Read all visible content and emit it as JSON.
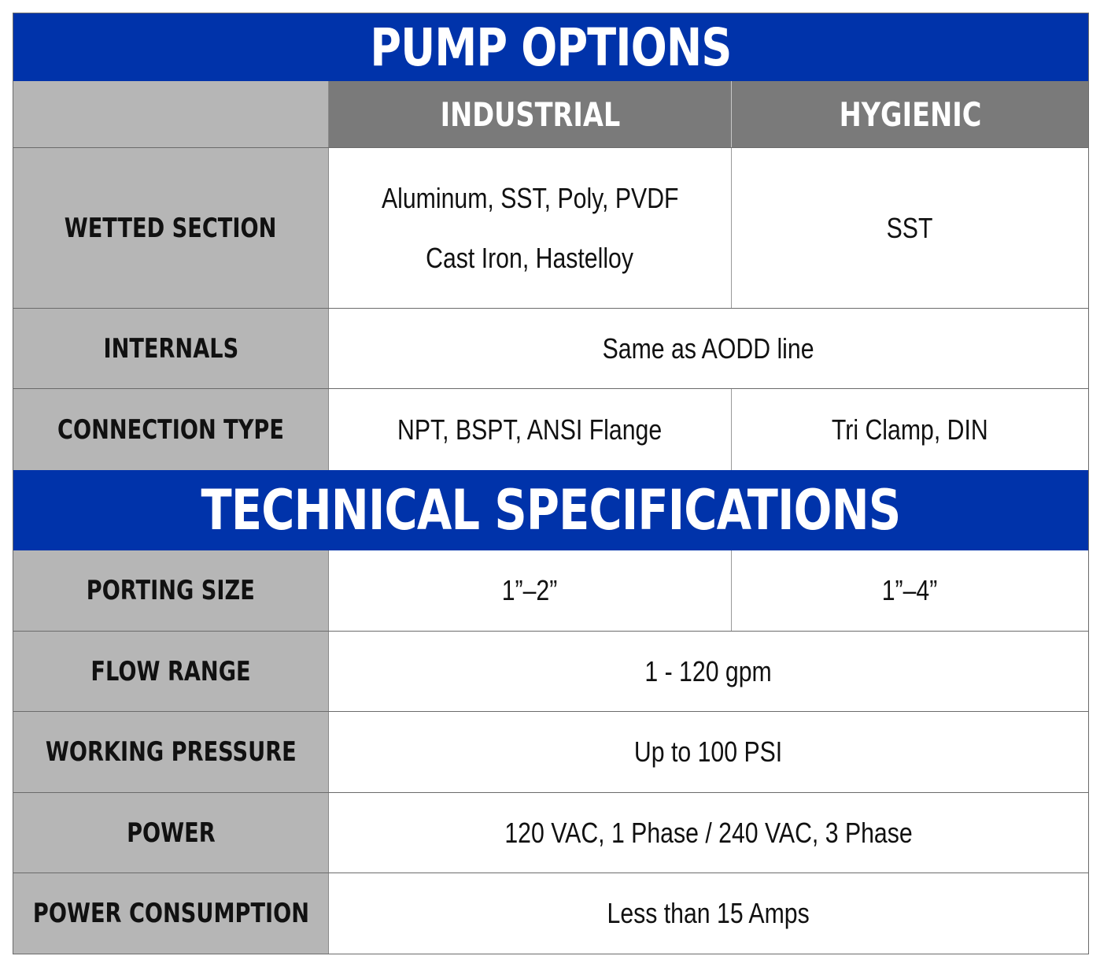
{
  "pump_options": {
    "title": "PUMP OPTIONS",
    "columns": [
      "INDUSTRIAL",
      "HYGIENIC"
    ],
    "rows": [
      {
        "label": "WETTED SECTION",
        "industrial": [
          "Aluminum, SST, Poly, PVDF",
          "Cast Iron, Hastelloy"
        ],
        "hygienic": "SST"
      },
      {
        "label": "INTERNALS",
        "both": "Same as AODD line"
      },
      {
        "label": "CONNECTION TYPE",
        "industrial": "NPT, BSPT, ANSI Flange",
        "hygienic": "Tri Clamp, DIN"
      }
    ]
  },
  "technical_specifications": {
    "title": "TECHNICAL SPECIFICATIONS",
    "rows": [
      {
        "label": "PORTING SIZE",
        "industrial": "1”–2”",
        "hygienic": "1”–4”"
      },
      {
        "label": "FLOW RANGE",
        "both": "1 - 120 gpm"
      },
      {
        "label": "WORKING PRESSURE",
        "both": "Up to 100 PSI"
      },
      {
        "label": "POWER",
        "both": "120 VAC, 1 Phase / 240 VAC, 3 Phase"
      },
      {
        "label": "POWER CONSUMPTION",
        "both": "Less than 15 Amps"
      }
    ]
  }
}
